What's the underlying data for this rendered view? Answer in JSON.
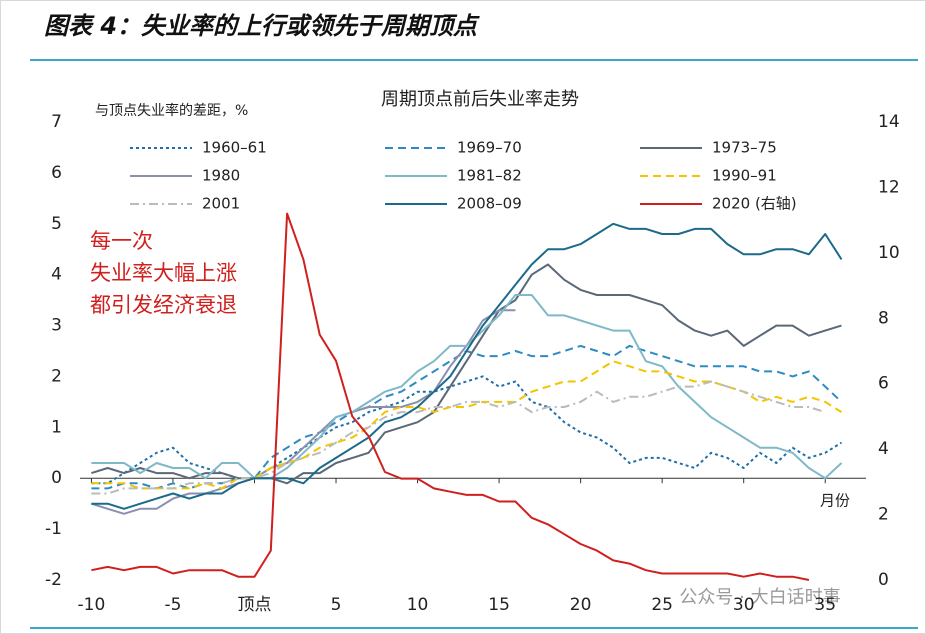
{
  "figure_title": "图表 4：失业率的上行或领先于周期顶点",
  "watermark": "公众号 · 大白话时事",
  "chart_data": {
    "type": "line",
    "title": "周期顶点前后失业率走势",
    "y_label": "与顶点失业率的差距，%",
    "x_label": "月份",
    "annotation": [
      "每一次",
      "失业率大幅上涨",
      "都引发经济衰退"
    ],
    "x": [
      -10,
      -9,
      -8,
      -7,
      -6,
      -5,
      -4,
      -3,
      -2,
      -1,
      0,
      1,
      2,
      3,
      4,
      5,
      6,
      7,
      8,
      9,
      10,
      11,
      12,
      13,
      14,
      15,
      16,
      17,
      18,
      19,
      20,
      21,
      22,
      23,
      24,
      25,
      26,
      27,
      28,
      29,
      30,
      31,
      32,
      33,
      34,
      35,
      36
    ],
    "xlim": [
      -10.7,
      37.5
    ],
    "xticks": [
      -10,
      -5,
      {
        "value": 0,
        "label": "顶点"
      },
      5,
      10,
      15,
      20,
      25,
      30,
      35
    ],
    "ylim": [
      -2,
      7
    ],
    "yticks": [
      -2,
      -1,
      0,
      1,
      2,
      3,
      4,
      5,
      6,
      7
    ],
    "y2lim": [
      0,
      14
    ],
    "y2ticks": [
      0,
      2,
      4,
      6,
      8,
      10,
      12,
      14
    ],
    "series": [
      {
        "name": "1960–61",
        "color": "#1f6fa8",
        "style": "dotted",
        "values": [
          -0.1,
          -0.1,
          0.1,
          0.3,
          0.5,
          0.6,
          0.3,
          0.2,
          0.1,
          0.0,
          0.0,
          0.2,
          0.4,
          0.6,
          0.8,
          1.0,
          1.1,
          1.3,
          1.4,
          1.5,
          1.7,
          1.7,
          1.8,
          1.9,
          2.0,
          1.8,
          1.9,
          1.5,
          1.4,
          1.1,
          0.9,
          0.8,
          0.6,
          0.3,
          0.4,
          0.4,
          0.3,
          0.2,
          0.5,
          0.4,
          0.2,
          0.5,
          0.3,
          0.6,
          0.4,
          0.5,
          0.7
        ]
      },
      {
        "name": "1969–70",
        "color": "#2e8bc0",
        "style": "dashed",
        "values": [
          -0.2,
          -0.2,
          -0.1,
          -0.1,
          -0.2,
          -0.1,
          -0.2,
          -0.1,
          -0.1,
          0.0,
          0.0,
          0.4,
          0.6,
          0.8,
          0.9,
          1.1,
          1.3,
          1.4,
          1.6,
          1.7,
          1.9,
          2.1,
          2.3,
          2.5,
          2.4,
          2.4,
          2.5,
          2.4,
          2.4,
          2.5,
          2.6,
          2.5,
          2.4,
          2.6,
          2.5,
          2.4,
          2.3,
          2.2,
          2.2,
          2.2,
          2.2,
          2.1,
          2.1,
          2.0,
          2.1,
          1.8,
          1.5
        ]
      },
      {
        "name": "1973–75",
        "color": "#5a6878",
        "style": "solid",
        "values": [
          0.1,
          0.2,
          0.1,
          0.2,
          0.1,
          0.1,
          0.0,
          0.1,
          0.1,
          0.0,
          0.0,
          0.0,
          -0.1,
          0.1,
          0.1,
          0.3,
          0.4,
          0.5,
          0.9,
          1.0,
          1.1,
          1.3,
          1.8,
          2.3,
          2.8,
          3.3,
          3.5,
          4.0,
          4.2,
          3.9,
          3.7,
          3.6,
          3.6,
          3.6,
          3.5,
          3.4,
          3.1,
          2.9,
          2.8,
          2.9,
          2.6,
          2.8,
          3.0,
          3.0,
          2.8,
          2.9,
          3.0
        ]
      },
      {
        "name": "1980",
        "color": "#8a90b0",
        "style": "solid",
        "values": [
          -0.5,
          -0.6,
          -0.7,
          -0.6,
          -0.6,
          -0.4,
          -0.3,
          -0.3,
          -0.2,
          -0.1,
          0.0,
          0.2,
          0.3,
          0.6,
          0.9,
          1.2,
          1.3,
          1.4,
          1.4,
          1.4,
          1.5,
          1.7,
          2.2,
          2.6,
          3.1,
          3.3,
          3.3,
          null,
          null,
          null,
          null,
          null,
          null,
          null,
          null,
          null,
          null,
          null,
          null,
          null,
          null,
          null,
          null,
          null,
          null,
          null,
          null
        ]
      },
      {
        "name": "1981–82",
        "color": "#7fb8c8",
        "style": "solid",
        "values": [
          0.3,
          0.3,
          0.3,
          0.1,
          0.3,
          0.2,
          0.2,
          0.0,
          0.3,
          0.3,
          0.0,
          0.0,
          0.2,
          0.5,
          0.8,
          1.2,
          1.3,
          1.5,
          1.7,
          1.8,
          2.1,
          2.3,
          2.6,
          2.6,
          2.9,
          3.2,
          3.6,
          3.6,
          3.2,
          3.2,
          3.1,
          3.0,
          2.9,
          2.9,
          2.3,
          2.2,
          1.8,
          1.5,
          1.2,
          1.0,
          0.8,
          0.6,
          0.6,
          0.5,
          0.2,
          0.0,
          0.3
        ]
      },
      {
        "name": "1990–91",
        "color": "#f2c500",
        "style": "dashed",
        "values": [
          -0.1,
          -0.1,
          -0.1,
          -0.2,
          -0.2,
          -0.2,
          -0.2,
          -0.1,
          -0.2,
          0.0,
          0.0,
          0.2,
          0.3,
          0.4,
          0.6,
          0.7,
          0.8,
          1.0,
          1.3,
          1.4,
          1.4,
          1.3,
          1.4,
          1.4,
          1.5,
          1.5,
          1.5,
          1.7,
          1.8,
          1.9,
          1.9,
          2.1,
          2.3,
          2.2,
          2.1,
          2.1,
          2.0,
          1.9,
          1.9,
          1.8,
          1.7,
          1.5,
          1.6,
          1.5,
          1.6,
          1.5,
          1.3
        ]
      },
      {
        "name": "2001",
        "color": "#bbbbbb",
        "style": "dashdot",
        "values": [
          -0.3,
          -0.3,
          -0.2,
          -0.2,
          -0.2,
          -0.2,
          -0.1,
          -0.1,
          -0.1,
          0.0,
          0.0,
          0.1,
          0.3,
          0.4,
          0.5,
          0.7,
          0.9,
          1.0,
          1.2,
          1.3,
          1.3,
          1.4,
          1.4,
          1.5,
          1.5,
          1.4,
          1.5,
          1.3,
          1.4,
          1.4,
          1.5,
          1.7,
          1.5,
          1.6,
          1.6,
          1.7,
          1.8,
          1.8,
          1.9,
          1.8,
          1.7,
          1.6,
          1.5,
          1.4,
          1.4,
          1.3,
          null
        ]
      },
      {
        "name": "2008–09",
        "color": "#1b6a8a",
        "style": "solid",
        "values": [
          -0.5,
          -0.5,
          -0.6,
          -0.5,
          -0.4,
          -0.3,
          -0.4,
          -0.3,
          -0.3,
          -0.1,
          0.0,
          0.0,
          0.0,
          -0.1,
          0.2,
          0.4,
          0.6,
          0.8,
          1.1,
          1.2,
          1.4,
          1.7,
          2.0,
          2.5,
          3.0,
          3.4,
          3.8,
          4.2,
          4.5,
          4.5,
          4.6,
          4.8,
          5.0,
          4.9,
          4.9,
          4.8,
          4.8,
          4.9,
          4.9,
          4.6,
          4.4,
          4.4,
          4.5,
          4.5,
          4.4,
          4.8,
          4.3
        ]
      },
      {
        "name": "2020 (右轴)",
        "color": "#d0201e",
        "style": "solid",
        "axis": "y2",
        "values": [
          0.3,
          0.4,
          0.3,
          0.4,
          0.4,
          0.2,
          0.3,
          0.3,
          0.3,
          0.1,
          0.1,
          0.9,
          11.2,
          9.8,
          7.5,
          6.7,
          5.0,
          4.4,
          3.3,
          3.1,
          3.1,
          2.8,
          2.7,
          2.6,
          2.6,
          2.4,
          2.4,
          1.9,
          1.7,
          1.4,
          1.1,
          0.9,
          0.6,
          0.5,
          0.3,
          0.2,
          0.2,
          0.2,
          0.2,
          0.2,
          0.1,
          0.2,
          0.1,
          0.1,
          0.0,
          null,
          null
        ]
      }
    ]
  }
}
